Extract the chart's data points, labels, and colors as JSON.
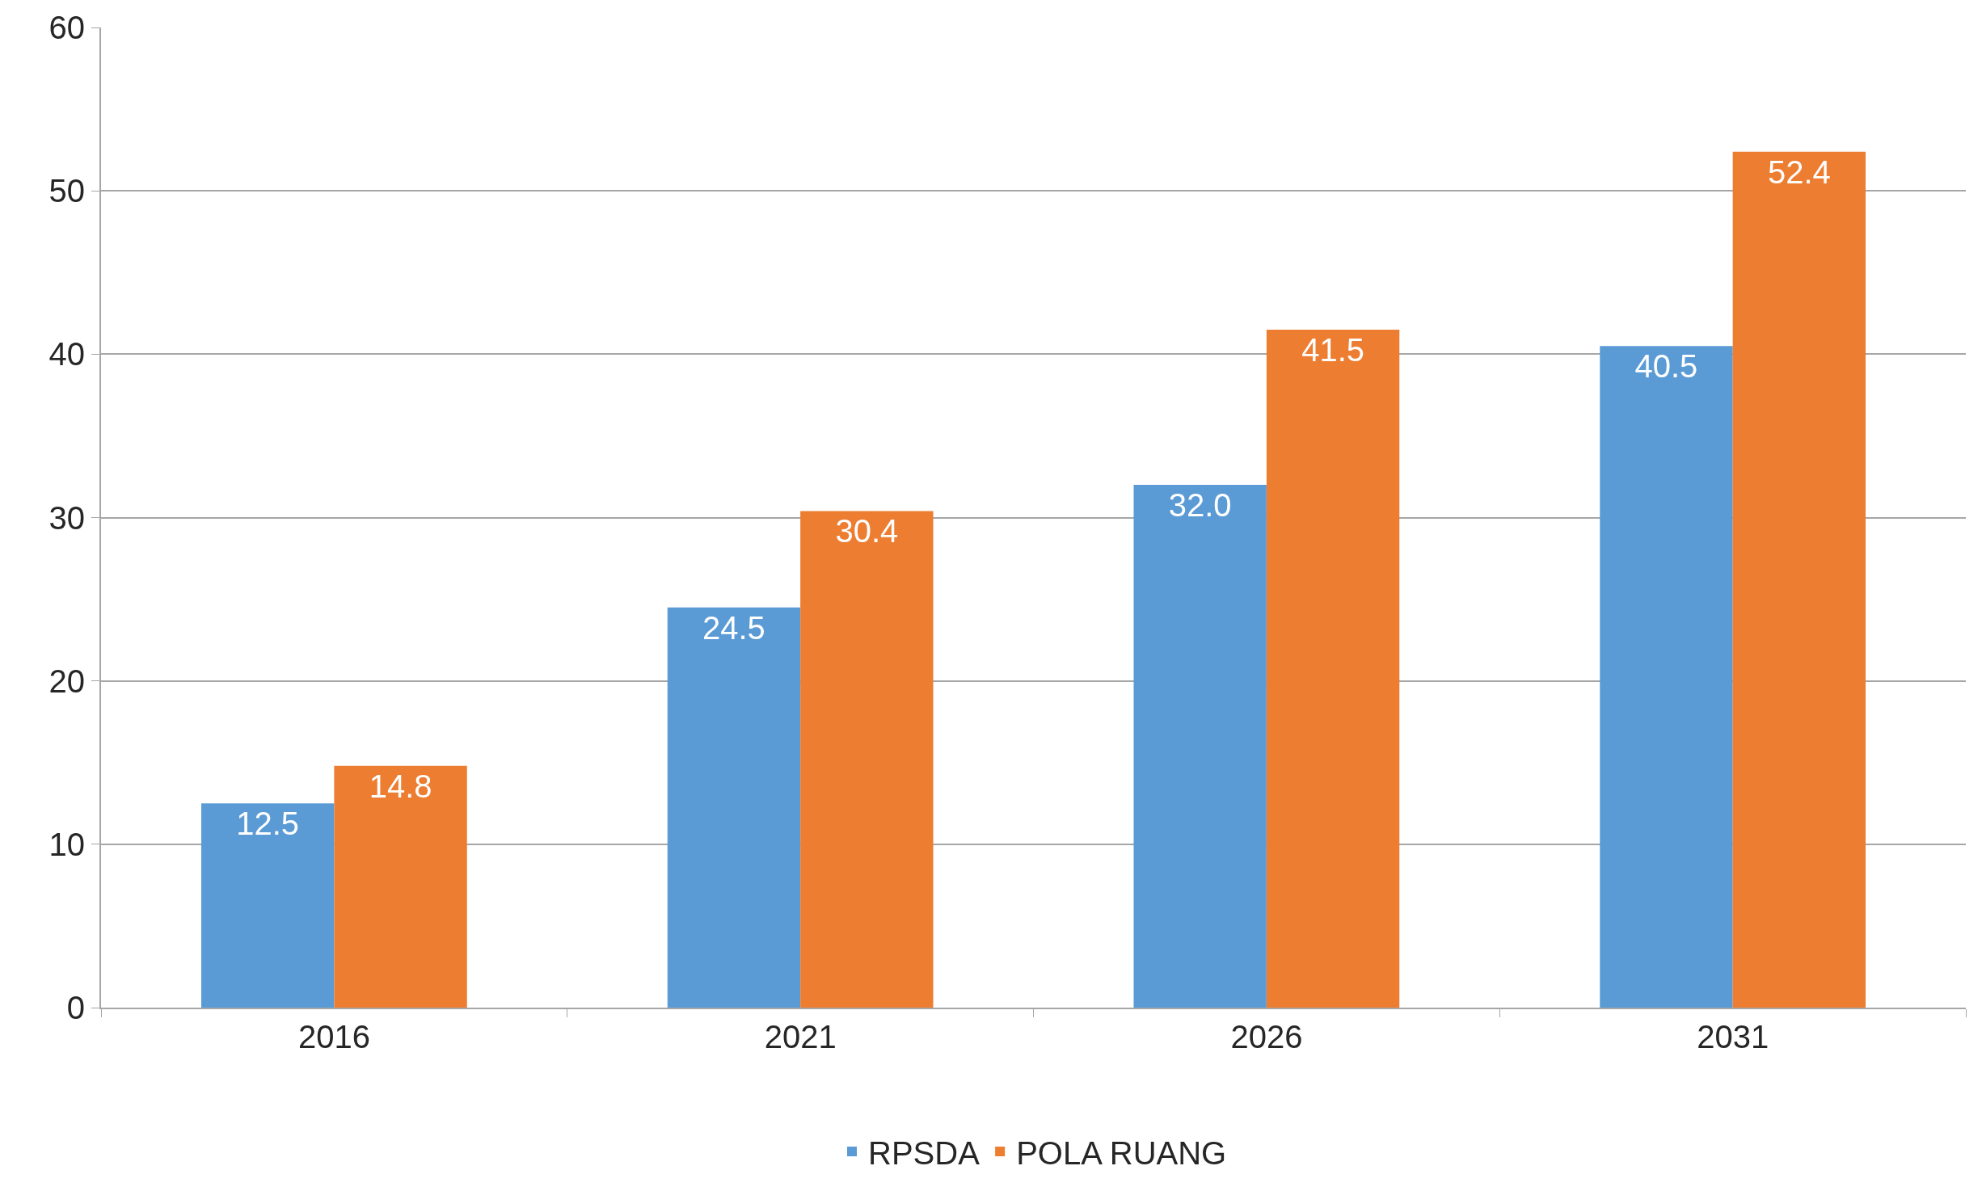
{
  "chart_data": {
    "type": "bar",
    "categories": [
      "2016",
      "2021",
      "2026",
      "2031"
    ],
    "series": [
      {
        "name": "RPSDA",
        "color": "#5b9bd5",
        "values": [
          12.5,
          24.5,
          32.0,
          40.5
        ],
        "value_labels": [
          "12.5",
          "24.5",
          "32.0",
          "40.5"
        ]
      },
      {
        "name": "POLA RUANG",
        "color": "#ed7d31",
        "values": [
          14.8,
          30.4,
          41.5,
          52.4
        ],
        "value_labels": [
          "14.8",
          "30.4",
          "41.5",
          "52.4"
        ]
      }
    ],
    "ylim": [
      0,
      60
    ],
    "yticks": [
      0,
      10,
      20,
      30,
      40,
      50,
      60
    ],
    "grid": "y",
    "legend": "bottom"
  }
}
